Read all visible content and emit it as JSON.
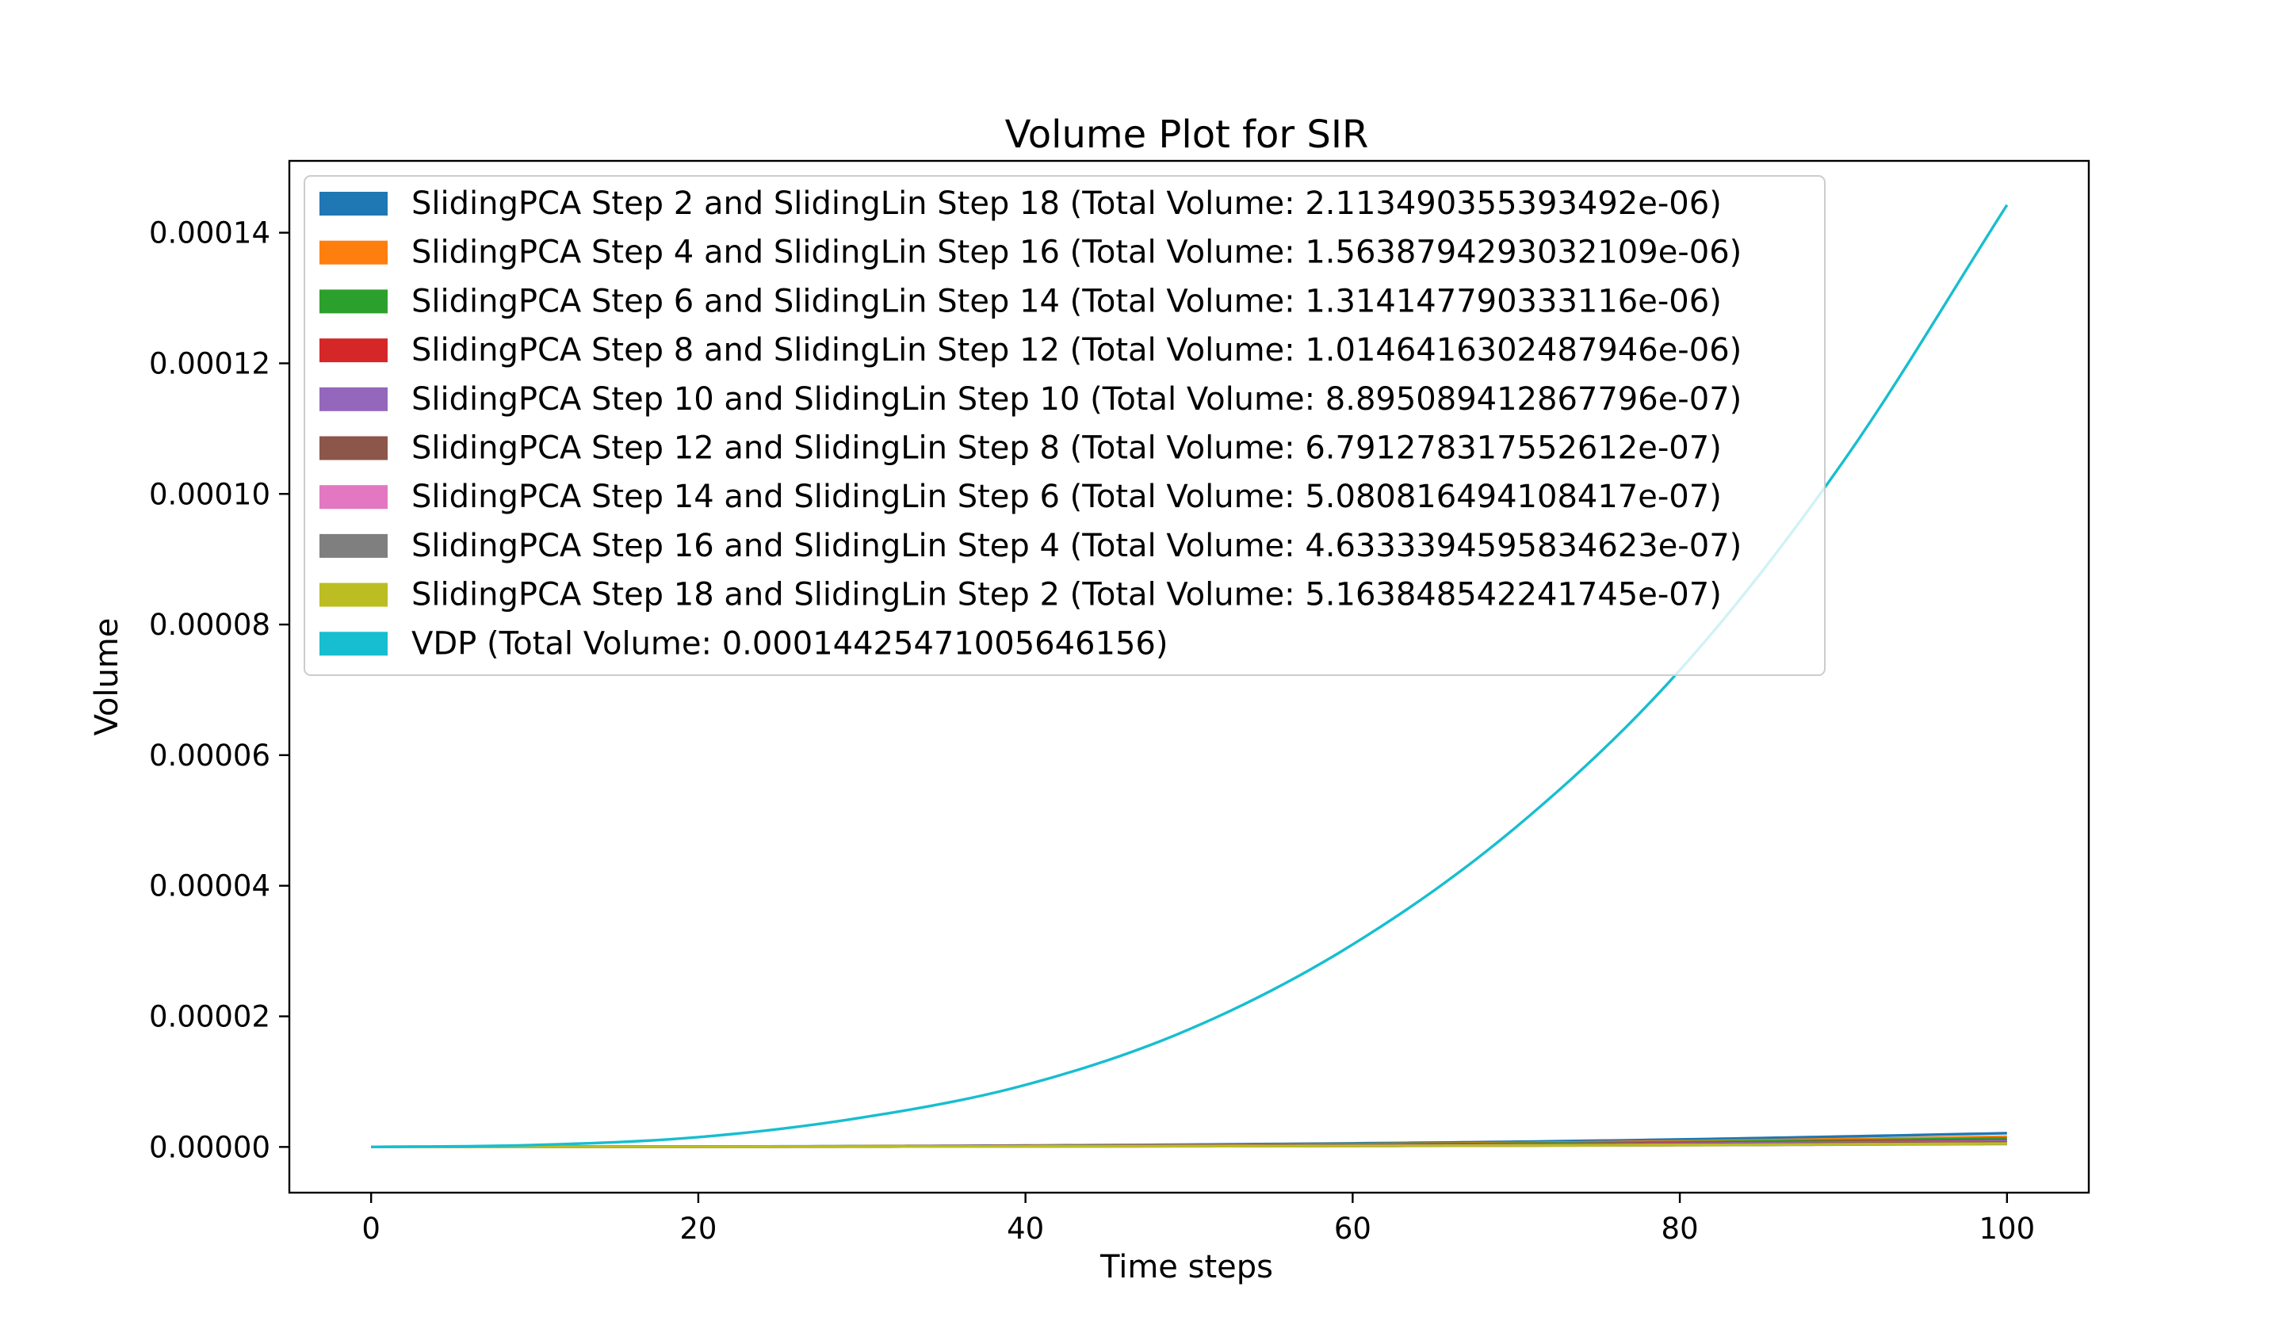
{
  "chart_data": {
    "type": "line",
    "title": "Volume Plot for SIR",
    "xlabel": "Time steps",
    "ylabel": "Volume",
    "xlim": [
      -5,
      105
    ],
    "ylim": [
      -7e-06,
      0.000151
    ],
    "xticks": [
      0,
      20,
      40,
      60,
      80,
      100
    ],
    "xtick_labels": [
      "0",
      "20",
      "40",
      "60",
      "80",
      "100"
    ],
    "yticks": [
      0,
      2e-05,
      4e-05,
      6e-05,
      8e-05,
      0.0001,
      0.00012,
      0.00014
    ],
    "ytick_labels": [
      "0.00000",
      "0.00002",
      "0.00004",
      "0.00006",
      "0.00008",
      "0.00010",
      "0.00012",
      "0.00014"
    ],
    "grid": false,
    "legend_position": "upper-left",
    "x": [
      0,
      10,
      20,
      30,
      40,
      50,
      60,
      70,
      80,
      90,
      100
    ],
    "series": [
      {
        "name": "SlidingPCA Step 2 and SlidingLin Step 18 (Total Volume: 2.113490355393492e-06)",
        "color": "#1f77b4",
        "values": [
          0,
          2e-08,
          6e-08,
          1.2e-07,
          2.2e-07,
          3.6e-07,
          5.5e-07,
          8e-07,
          1.15e-06,
          1.6e-06,
          2.11e-06
        ]
      },
      {
        "name": "SlidingPCA Step 4 and SlidingLin Step 16 (Total Volume: 1.5638794293032109e-06)",
        "color": "#ff7f0e",
        "values": [
          0,
          2e-08,
          5e-08,
          1e-07,
          1.8e-07,
          2.8e-07,
          4.2e-07,
          6.1e-07,
          8.6e-07,
          1.19e-06,
          1.56e-06
        ]
      },
      {
        "name": "SlidingPCA Step 6 and SlidingLin Step 14 (Total Volume: 1.314147790333116e-06)",
        "color": "#2ca02c",
        "values": [
          0,
          2e-08,
          5e-08,
          9e-08,
          1.5e-07,
          2.4e-07,
          3.6e-07,
          5.2e-07,
          7.3e-07,
          1e-06,
          1.31e-06
        ]
      },
      {
        "name": "SlidingPCA Step 8 and SlidingLin Step 12 (Total Volume: 1.0146416302487946e-06)",
        "color": "#d62728",
        "values": [
          0,
          2e-08,
          4e-08,
          8e-08,
          1.3e-07,
          2e-07,
          2.9e-07,
          4.1e-07,
          5.7e-07,
          7.8e-07,
          1.01e-06
        ]
      },
      {
        "name": "SlidingPCA Step 10 and SlidingLin Step 10 (Total Volume: 8.895089412867796e-07)",
        "color": "#9467bd",
        "values": [
          0,
          2e-08,
          4e-08,
          7e-08,
          1.2e-07,
          1.8e-07,
          2.6e-07,
          3.6e-07,
          5e-07,
          6.8e-07,
          8.9e-07
        ]
      },
      {
        "name": "SlidingPCA Step 12 and SlidingLin Step 8 (Total Volume: 6.791278317552612e-07)",
        "color": "#8c564b",
        "values": [
          0,
          2e-08,
          3e-08,
          6e-08,
          1e-07,
          1.5e-07,
          2.1e-07,
          2.8e-07,
          3.9e-07,
          5.2e-07,
          6.8e-07
        ]
      },
      {
        "name": "SlidingPCA Step 14 and SlidingLin Step 6 (Total Volume: 5.080816494108417e-07)",
        "color": "#e377c2",
        "values": [
          0,
          2e-08,
          3e-08,
          5e-08,
          8e-08,
          1.2e-07,
          1.6e-07,
          2.2e-07,
          3e-07,
          4e-07,
          5.1e-07
        ]
      },
      {
        "name": "SlidingPCA Step 16 and SlidingLin Step 4 (Total Volume: 4.6333394595834623e-07)",
        "color": "#7f7f7f",
        "values": [
          0,
          2e-08,
          3e-08,
          5e-08,
          8e-08,
          1.1e-07,
          1.5e-07,
          2e-07,
          2.7e-07,
          3.6e-07,
          4.6e-07
        ]
      },
      {
        "name": "SlidingPCA Step 18 and SlidingLin Step 2 (Total Volume: 5.163848542241745e-07)",
        "color": "#bcbd22",
        "values": [
          0,
          2e-08,
          3e-08,
          5e-08,
          8e-08,
          1.2e-07,
          1.6e-07,
          2.2e-07,
          3e-07,
          4e-07,
          5.2e-07
        ]
      },
      {
        "name": "VDP (Total Volume: 0.00014425471005646156)",
        "color": "#17becf",
        "values": [
          0,
          3e-07,
          1.5e-06,
          4.5e-06,
          9.5e-06,
          1.8e-05,
          3.1e-05,
          4.9e-05,
          7.3e-05,
          0.000105,
          0.00014425
        ]
      }
    ]
  }
}
